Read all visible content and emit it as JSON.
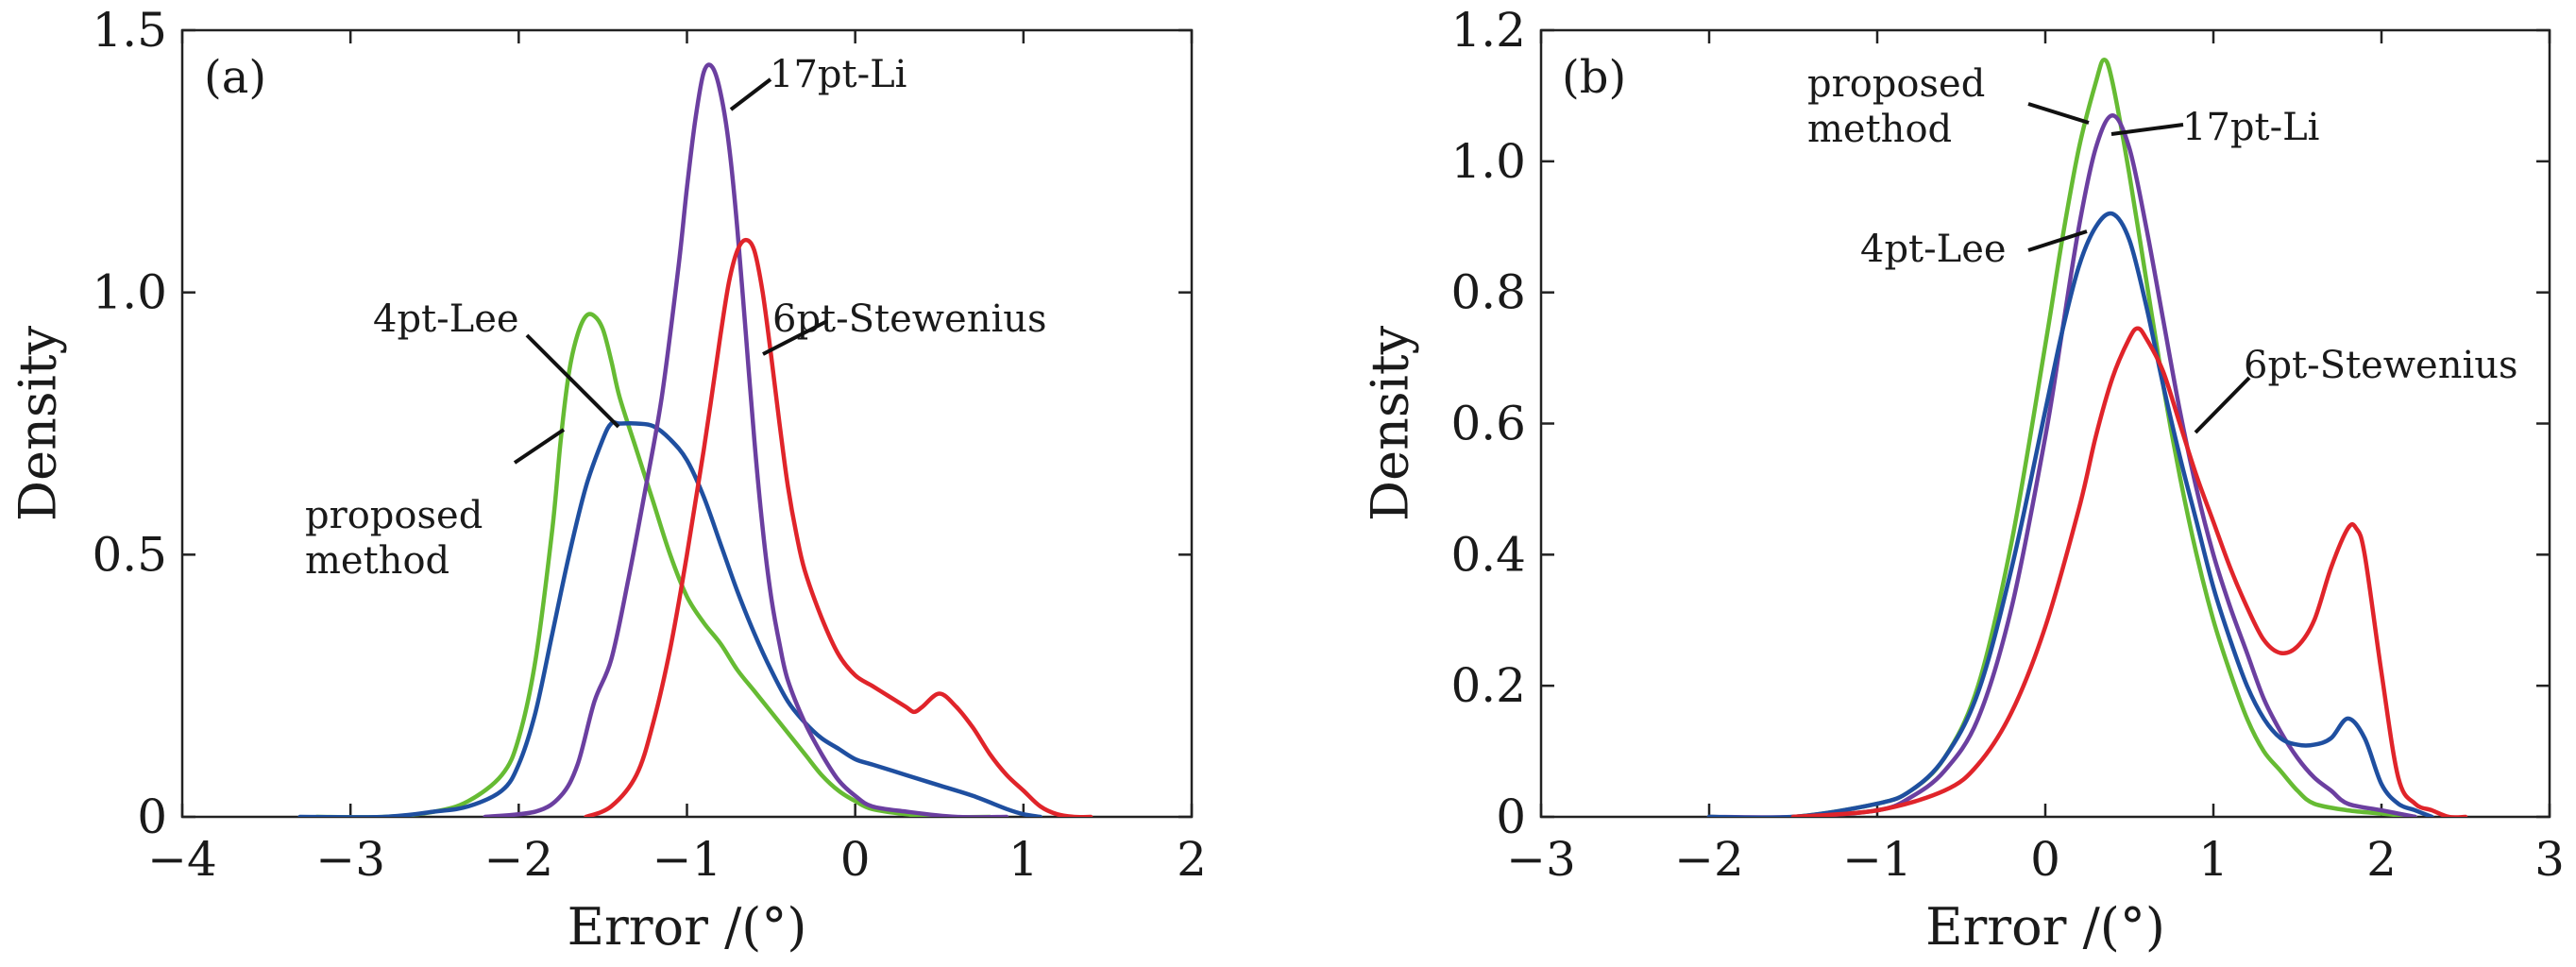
{
  "chart_data": [
    {
      "type": "line",
      "panel_label": "(a)",
      "xlabel": "Error /(°)",
      "ylabel": "Density",
      "xlim": [
        -4,
        2
      ],
      "ylim": [
        0,
        1.5
      ],
      "xticks": [
        -4,
        -3,
        -2,
        -1,
        0,
        1,
        2
      ],
      "xtick_labels": [
        "−4",
        "−3",
        "−2",
        "−1",
        "0",
        "1",
        "2"
      ],
      "yticks": [
        0,
        0.5,
        1.0,
        1.5
      ],
      "ytick_labels": [
        "0",
        "0.5",
        "1.0",
        "1.5"
      ],
      "grid": false,
      "series": [
        {
          "name": "proposed method",
          "color": "#66bb33",
          "x": [
            -3.2,
            -2.8,
            -2.5,
            -2.3,
            -2.1,
            -2.0,
            -1.9,
            -1.8,
            -1.75,
            -1.7,
            -1.65,
            -1.6,
            -1.55,
            -1.5,
            -1.45,
            -1.4,
            -1.3,
            -1.2,
            -1.1,
            -1.0,
            -0.9,
            -0.8,
            -0.7,
            -0.6,
            -0.5,
            -0.4,
            -0.3,
            -0.2,
            -0.1,
            0.0,
            0.1,
            0.3,
            0.5,
            0.8
          ],
          "y": [
            0.0,
            0.0,
            0.01,
            0.03,
            0.08,
            0.15,
            0.3,
            0.55,
            0.72,
            0.85,
            0.92,
            0.955,
            0.955,
            0.93,
            0.87,
            0.8,
            0.7,
            0.6,
            0.5,
            0.42,
            0.37,
            0.33,
            0.28,
            0.24,
            0.2,
            0.16,
            0.12,
            0.08,
            0.05,
            0.03,
            0.015,
            0.005,
            0.0,
            0.0
          ]
        },
        {
          "name": "4pt-Lee",
          "color": "#1f4fa0",
          "x": [
            -3.3,
            -2.8,
            -2.5,
            -2.3,
            -2.1,
            -2.0,
            -1.9,
            -1.8,
            -1.7,
            -1.6,
            -1.5,
            -1.45,
            -1.4,
            -1.3,
            -1.2,
            -1.1,
            -1.0,
            -0.9,
            -0.8,
            -0.7,
            -0.6,
            -0.5,
            -0.4,
            -0.3,
            -0.2,
            -0.1,
            0.0,
            0.1,
            0.2,
            0.3,
            0.5,
            0.7,
            0.9,
            1.0,
            1.1
          ],
          "y": [
            0.0,
            0.0,
            0.01,
            0.02,
            0.05,
            0.1,
            0.2,
            0.35,
            0.5,
            0.63,
            0.72,
            0.75,
            0.75,
            0.75,
            0.745,
            0.72,
            0.68,
            0.61,
            0.52,
            0.43,
            0.35,
            0.28,
            0.22,
            0.18,
            0.15,
            0.13,
            0.11,
            0.1,
            0.09,
            0.08,
            0.06,
            0.04,
            0.015,
            0.005,
            0.0
          ]
        },
        {
          "name": "17pt-Li",
          "color": "#6b3fa0",
          "x": [
            -2.2,
            -1.9,
            -1.75,
            -1.65,
            -1.55,
            -1.45,
            -1.35,
            -1.25,
            -1.15,
            -1.05,
            -1.0,
            -0.95,
            -0.9,
            -0.85,
            -0.8,
            -0.75,
            -0.7,
            -0.65,
            -0.6,
            -0.55,
            -0.5,
            -0.45,
            -0.4,
            -0.3,
            -0.2,
            -0.1,
            0.0,
            0.1,
            0.3,
            0.6,
            0.9
          ],
          "y": [
            0.0,
            0.01,
            0.04,
            0.1,
            0.22,
            0.3,
            0.45,
            0.62,
            0.8,
            1.05,
            1.2,
            1.33,
            1.42,
            1.43,
            1.38,
            1.28,
            1.12,
            0.92,
            0.72,
            0.55,
            0.42,
            0.33,
            0.26,
            0.18,
            0.12,
            0.07,
            0.04,
            0.02,
            0.01,
            0.0,
            0.0
          ]
        },
        {
          "name": "6pt-Stewenius",
          "color": "#e0242a",
          "x": [
            -1.6,
            -1.45,
            -1.3,
            -1.2,
            -1.1,
            -1.0,
            -0.9,
            -0.8,
            -0.75,
            -0.7,
            -0.65,
            -0.6,
            -0.55,
            -0.5,
            -0.45,
            -0.4,
            -0.35,
            -0.3,
            -0.2,
            -0.1,
            0.0,
            0.1,
            0.2,
            0.3,
            0.35,
            0.4,
            0.5,
            0.6,
            0.7,
            0.8,
            0.9,
            1.0,
            1.1,
            1.2,
            1.3,
            1.4
          ],
          "y": [
            0.0,
            0.02,
            0.08,
            0.18,
            0.32,
            0.5,
            0.7,
            0.92,
            1.02,
            1.08,
            1.1,
            1.08,
            1.0,
            0.88,
            0.75,
            0.63,
            0.54,
            0.47,
            0.38,
            0.31,
            0.27,
            0.25,
            0.23,
            0.21,
            0.2,
            0.21,
            0.235,
            0.21,
            0.17,
            0.12,
            0.08,
            0.05,
            0.02,
            0.005,
            0.0,
            0.0
          ]
        }
      ],
      "annotations": [
        {
          "lines": [
            "17pt-Li"
          ],
          "series": "17pt-Li"
        },
        {
          "lines": [
            "6pt-Stewenius"
          ],
          "series": "6pt-Stewenius"
        },
        {
          "lines": [
            "4pt-Lee"
          ],
          "series": "4pt-Lee"
        },
        {
          "lines": [
            "proposed",
            "method"
          ],
          "series": "proposed method"
        }
      ]
    },
    {
      "type": "line",
      "panel_label": "(b)",
      "xlabel": "Error /(°)",
      "ylabel": "Density",
      "xlim": [
        -3,
        3
      ],
      "ylim": [
        0,
        1.2
      ],
      "xticks": [
        -3,
        -2,
        -1,
        0,
        1,
        2,
        3
      ],
      "xtick_labels": [
        "−3",
        "−2",
        "−1",
        "0",
        "1",
        "2",
        "3"
      ],
      "yticks": [
        0,
        0.2,
        0.4,
        0.6,
        0.8,
        1.0,
        1.2
      ],
      "ytick_labels": [
        "0",
        "0.2",
        "0.4",
        "0.6",
        "0.8",
        "1.0",
        "1.2"
      ],
      "grid": false,
      "series": [
        {
          "name": "proposed method",
          "color": "#66bb33",
          "x": [
            -2.0,
            -1.5,
            -1.0,
            -0.8,
            -0.6,
            -0.4,
            -0.2,
            0.0,
            0.1,
            0.2,
            0.3,
            0.35,
            0.4,
            0.5,
            0.6,
            0.7,
            0.8,
            0.9,
            1.0,
            1.1,
            1.2,
            1.3,
            1.4,
            1.5,
            1.6,
            1.8,
            2.0,
            2.2
          ],
          "y": [
            0.0,
            0.0,
            0.02,
            0.04,
            0.09,
            0.2,
            0.42,
            0.72,
            0.88,
            1.02,
            1.12,
            1.155,
            1.12,
            0.98,
            0.82,
            0.66,
            0.52,
            0.4,
            0.3,
            0.22,
            0.15,
            0.1,
            0.07,
            0.04,
            0.02,
            0.01,
            0.005,
            0.0
          ]
        },
        {
          "name": "17pt-Li",
          "color": "#6b3fa0",
          "x": [
            -2.0,
            -1.5,
            -1.0,
            -0.8,
            -0.6,
            -0.4,
            -0.2,
            0.0,
            0.1,
            0.2,
            0.3,
            0.4,
            0.5,
            0.6,
            0.7,
            0.8,
            0.9,
            1.0,
            1.1,
            1.2,
            1.3,
            1.4,
            1.5,
            1.6,
            1.7,
            1.8,
            2.0,
            2.2
          ],
          "y": [
            0.0,
            0.0,
            0.01,
            0.03,
            0.07,
            0.15,
            0.32,
            0.58,
            0.74,
            0.9,
            1.02,
            1.07,
            1.02,
            0.9,
            0.76,
            0.62,
            0.5,
            0.4,
            0.32,
            0.25,
            0.18,
            0.13,
            0.09,
            0.06,
            0.04,
            0.02,
            0.01,
            0.0
          ]
        },
        {
          "name": "4pt-Lee",
          "color": "#1f4fa0",
          "x": [
            -2.0,
            -1.5,
            -1.0,
            -0.8,
            -0.6,
            -0.4,
            -0.2,
            0.0,
            0.1,
            0.2,
            0.3,
            0.4,
            0.5,
            0.6,
            0.7,
            0.8,
            0.9,
            1.0,
            1.1,
            1.2,
            1.3,
            1.4,
            1.5,
            1.6,
            1.7,
            1.8,
            1.9,
            2.0,
            2.1,
            2.2,
            2.3
          ],
          "y": [
            0.0,
            0.0,
            0.02,
            0.04,
            0.09,
            0.19,
            0.38,
            0.62,
            0.74,
            0.84,
            0.9,
            0.92,
            0.88,
            0.78,
            0.66,
            0.55,
            0.45,
            0.35,
            0.27,
            0.2,
            0.15,
            0.12,
            0.11,
            0.11,
            0.12,
            0.15,
            0.12,
            0.05,
            0.02,
            0.01,
            0.0
          ]
        },
        {
          "name": "6pt-Stewenius",
          "color": "#e0242a",
          "x": [
            -1.5,
            -1.0,
            -0.6,
            -0.4,
            -0.2,
            0.0,
            0.2,
            0.3,
            0.4,
            0.5,
            0.55,
            0.6,
            0.7,
            0.8,
            0.9,
            1.0,
            1.1,
            1.2,
            1.3,
            1.4,
            1.5,
            1.6,
            1.7,
            1.8,
            1.85,
            1.9,
            2.0,
            2.1,
            2.2,
            2.3,
            2.4,
            2.5
          ],
          "y": [
            0.0,
            0.01,
            0.04,
            0.08,
            0.16,
            0.29,
            0.47,
            0.58,
            0.67,
            0.73,
            0.745,
            0.73,
            0.68,
            0.6,
            0.52,
            0.45,
            0.38,
            0.32,
            0.27,
            0.25,
            0.26,
            0.3,
            0.38,
            0.44,
            0.44,
            0.4,
            0.22,
            0.06,
            0.02,
            0.01,
            0.0,
            0.0
          ]
        }
      ],
      "annotations": [
        {
          "lines": [
            "proposed",
            "method"
          ],
          "series": "proposed method"
        },
        {
          "lines": [
            "17pt-Li"
          ],
          "series": "17pt-Li"
        },
        {
          "lines": [
            "4pt-Lee"
          ],
          "series": "4pt-Lee"
        },
        {
          "lines": [
            "6pt-Stewenius"
          ],
          "series": "6pt-Stewenius"
        }
      ]
    }
  ]
}
